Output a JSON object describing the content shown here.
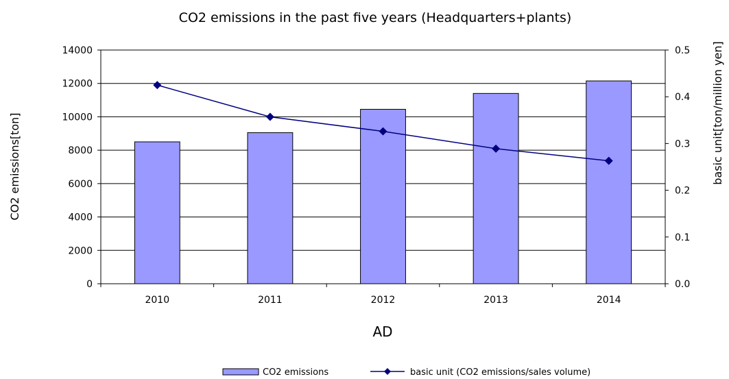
{
  "chart_data": {
    "type": "bar",
    "title": "CO2 emissions in the past five years (Headquarters+plants)",
    "xlabel": "AD",
    "ylabel": "CO2 emissions[ton]",
    "y2label": "basic unit[ton/million yen]",
    "categories": [
      "2010",
      "2011",
      "2012",
      "2013",
      "2014"
    ],
    "ylim": [
      0,
      14000
    ],
    "y2lim": [
      0,
      0.5
    ],
    "yticks": [
      "0",
      "2000",
      "4000",
      "6000",
      "8000",
      "10000",
      "12000",
      "14000"
    ],
    "y2ticks": [
      "0.0",
      "0.1",
      "0.2",
      "0.3",
      "0.4",
      "0.5"
    ],
    "grid": true,
    "legend_position": "bottom",
    "series": [
      {
        "name": "CO2 emissions",
        "type": "bar",
        "axis": "left",
        "color": "#9999ff",
        "values": [
          8500,
          9050,
          10450,
          11400,
          12150
        ]
      },
      {
        "name": "basic unit (CO2 emissions/sales volume)",
        "type": "line",
        "axis": "right",
        "color": "#000080",
        "marker": "diamond",
        "values": [
          0.425,
          0.357,
          0.326,
          0.289,
          0.263
        ]
      }
    ]
  }
}
